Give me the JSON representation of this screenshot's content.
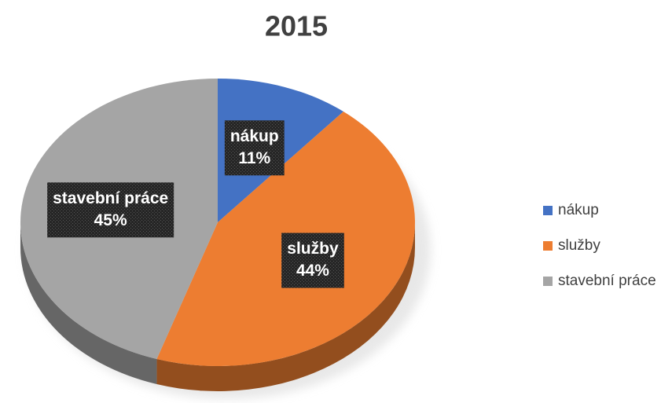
{
  "chart_data": {
    "type": "pie",
    "title": "2015",
    "categories": [
      "nákup",
      "služby",
      "stavební práce"
    ],
    "values": [
      11,
      44,
      45
    ],
    "value_labels": [
      "11%",
      "44%",
      "45%"
    ],
    "colors": [
      "#4472c4",
      "#ed7d31",
      "#a5a5a5"
    ],
    "legend": "right"
  }
}
